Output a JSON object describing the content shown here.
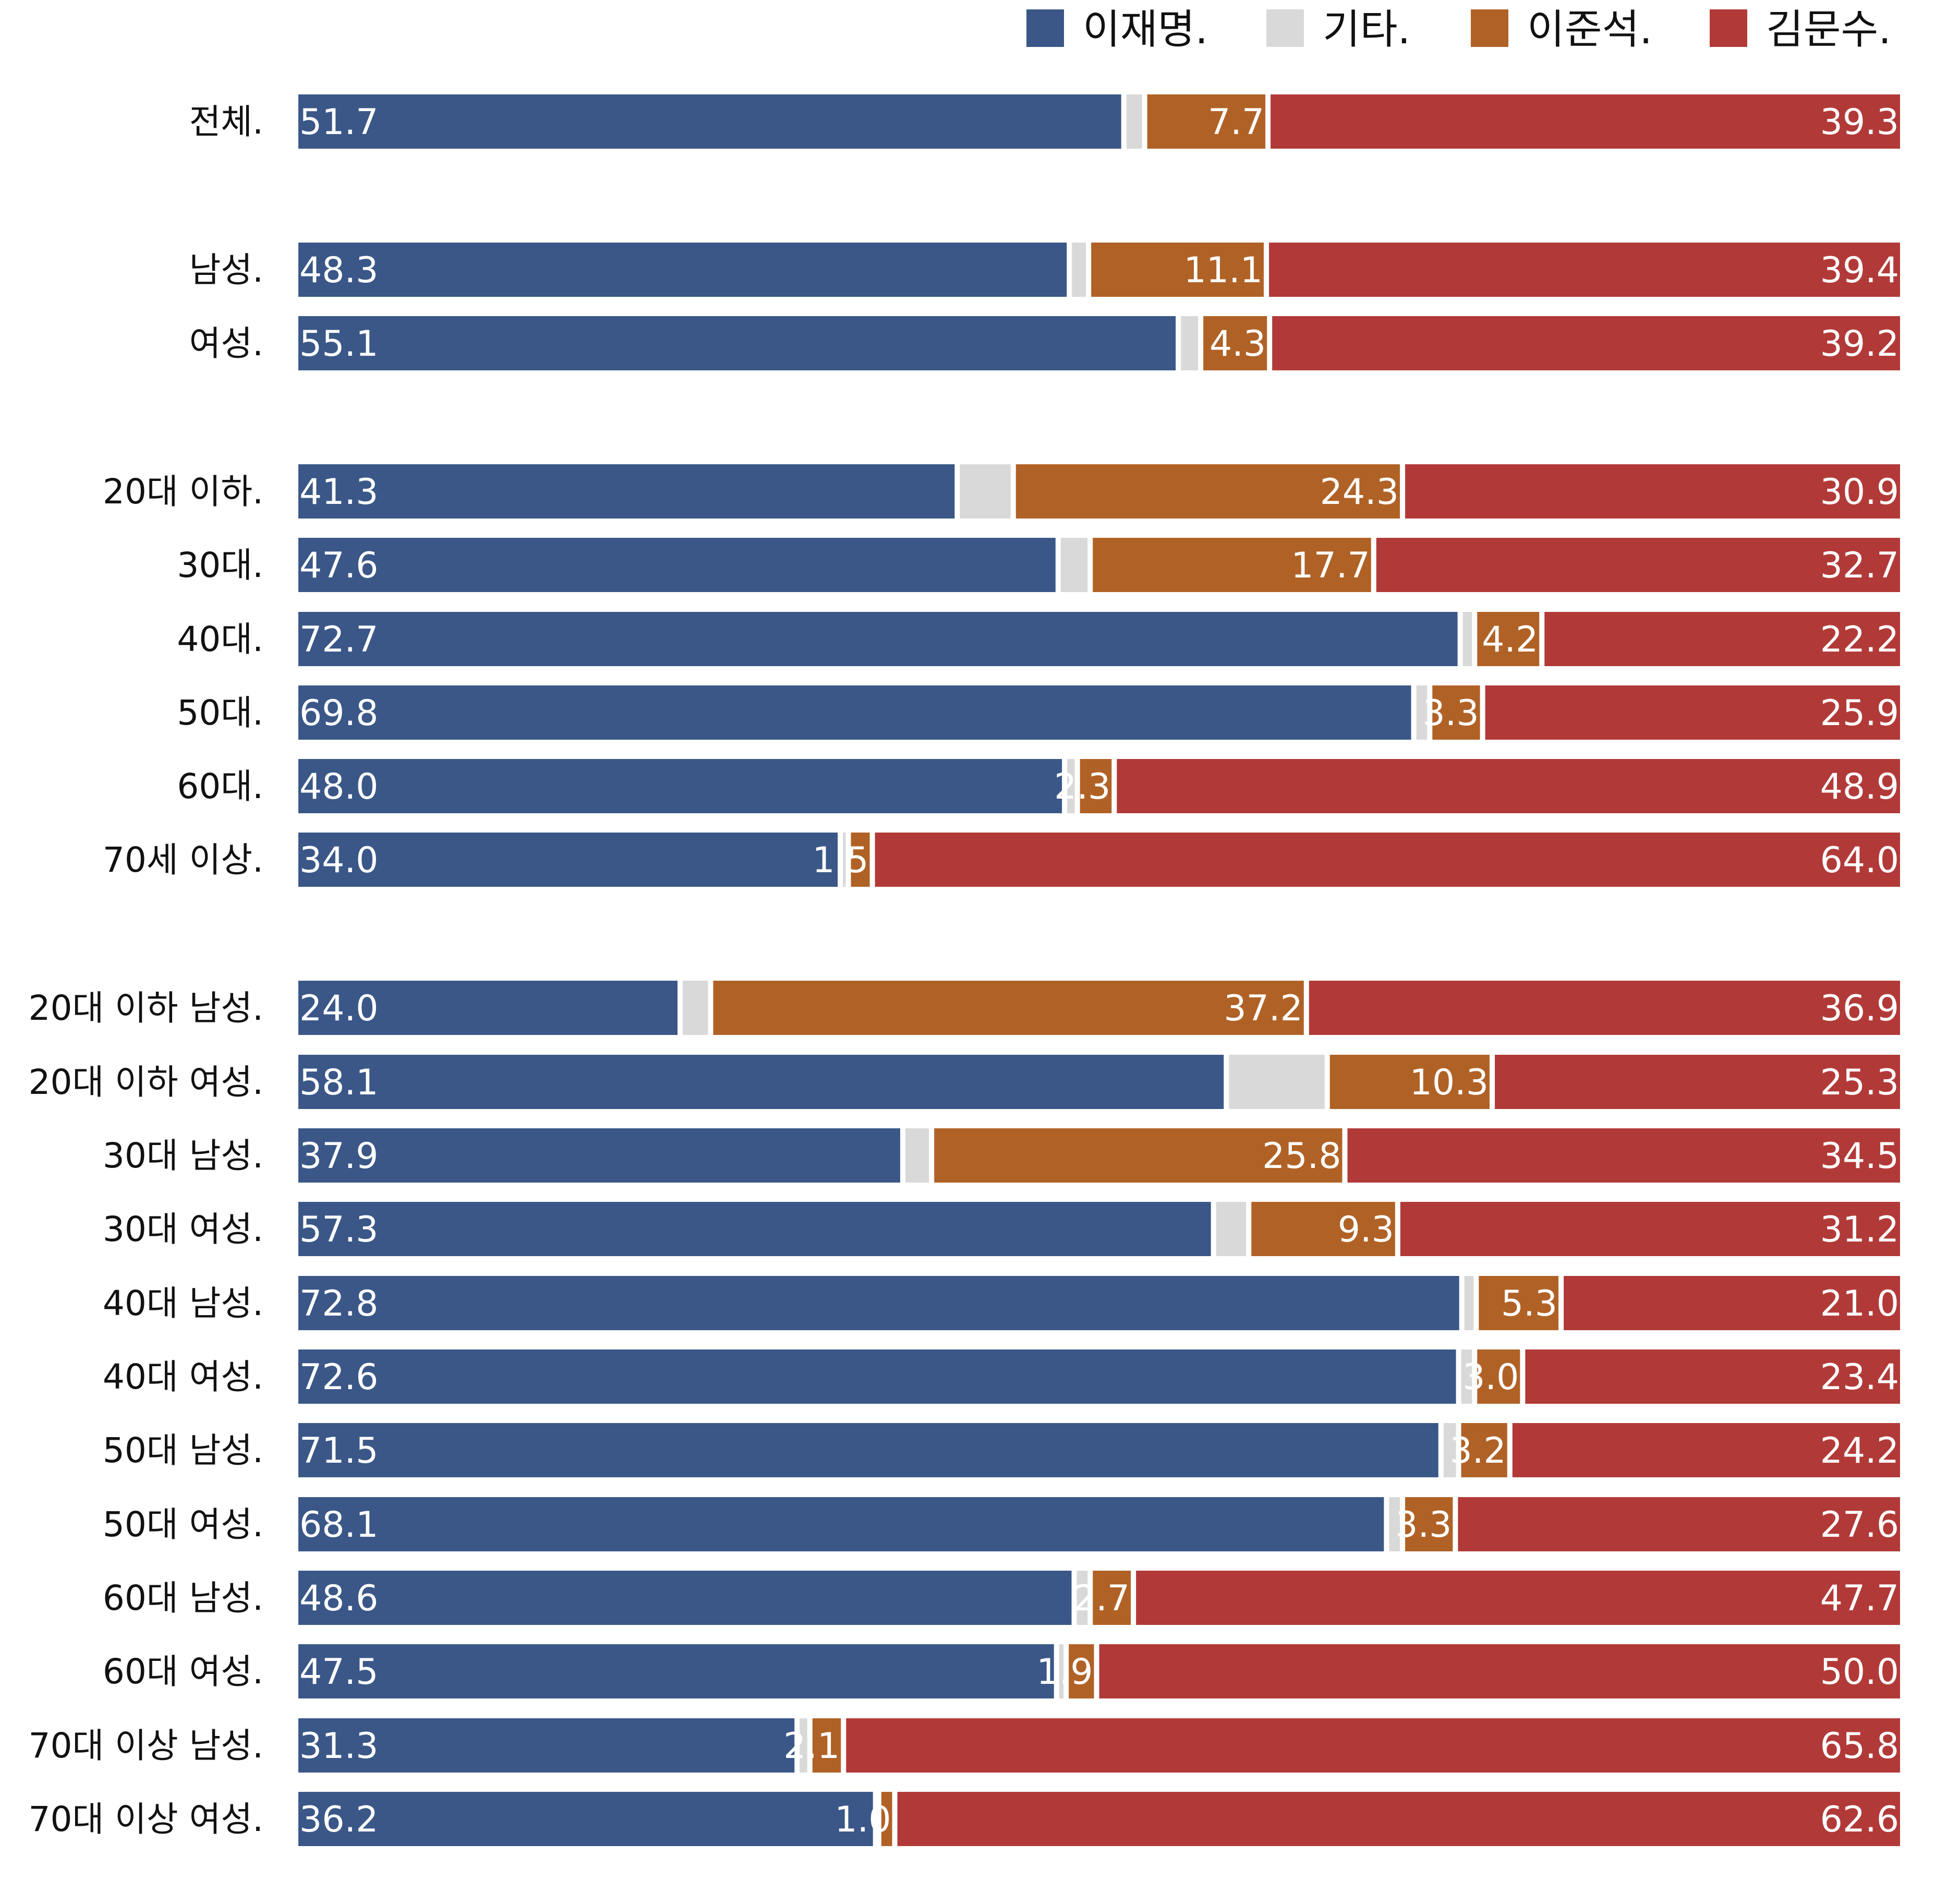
{
  "chart_data": {
    "type": "bar",
    "orientation": "horizontal",
    "stacked": true,
    "normalized_to": 100,
    "grid": false,
    "legend_position": "top-right",
    "series": [
      {
        "name": "이재명.",
        "color": "#3a5788",
        "values": [
          51.7,
          48.3,
          55.1,
          41.3,
          47.6,
          72.7,
          69.8,
          48.0,
          34.0,
          24.0,
          58.1,
          37.9,
          57.3,
          72.8,
          72.6,
          71.5,
          68.1,
          48.6,
          47.5,
          31.3,
          36.2
        ],
        "labels": [
          "51.7",
          "48.3",
          "55.1",
          "41.3",
          "47.6",
          "72.7",
          "69.8",
          "48.0",
          "34.0",
          "24.0",
          "58.1",
          "37.9",
          "57.3",
          "72.8",
          "72.6",
          "71.5",
          "68.1",
          "48.6",
          "47.5",
          "31.3",
          "36.2"
        ]
      },
      {
        "name": "기타.",
        "color": "#d9d9d9",
        "values": [
          1.3,
          1.2,
          1.4,
          3.5,
          2.0,
          0.9,
          1.0,
          0.8,
          0.5,
          1.9,
          6.3,
          1.8,
          2.2,
          0.9,
          1.0,
          1.1,
          1.0,
          1.0,
          0.6,
          0.8,
          0.2
        ],
        "labels": [
          "",
          "",
          "",
          "",
          "",
          "",
          "",
          "",
          "",
          "",
          "",
          "",
          "",
          "",
          "",
          "",
          "",
          "",
          "",
          "",
          ""
        ]
      },
      {
        "name": "이준석.",
        "color": "#b06226",
        "values": [
          7.7,
          11.1,
          4.3,
          24.3,
          17.7,
          4.2,
          3.3,
          2.3,
          1.5,
          37.2,
          10.3,
          25.8,
          9.3,
          5.3,
          3.0,
          3.2,
          3.3,
          2.7,
          1.9,
          2.1,
          1.0
        ],
        "labels": [
          "7.7",
          "11.1",
          "4.3",
          "24.3",
          "17.7",
          "4.2",
          "3.3",
          "2.3",
          "1.5",
          "37.2",
          "10.3",
          "25.8",
          "9.3",
          "5.3",
          "3.0",
          "3.2",
          "3.3",
          "2.7",
          "1.9",
          "2.1",
          "1.0"
        ]
      },
      {
        "name": "김문수.",
        "color": "#b13a38",
        "values": [
          39.3,
          39.4,
          39.2,
          30.9,
          32.7,
          22.2,
          25.9,
          48.9,
          64.0,
          36.9,
          25.3,
          34.5,
          31.2,
          21.0,
          23.4,
          24.2,
          27.6,
          47.7,
          50.0,
          65.8,
          62.6
        ],
        "labels": [
          "39.3",
          "39.4",
          "39.2",
          "30.9",
          "32.7",
          "22.2",
          "25.9",
          "48.9",
          "64.0",
          "36.9",
          "25.3",
          "34.5",
          "31.2",
          "21.0",
          "23.4",
          "24.2",
          "27.6",
          "47.7",
          "50.0",
          "65.8",
          "62.6"
        ]
      }
    ],
    "categories": [
      "전체.",
      "남성.",
      "여성.",
      "20대 이하.",
      "30대.",
      "40대.",
      "50대.",
      "60대.",
      "70세 이상.",
      "20대 이하 남성.",
      "20대 이하 여성.",
      "30대 남성.",
      "30대 여성.",
      "40대 남성.",
      "40대 여성.",
      "50대 남성.",
      "50대 여성.",
      "60대 남성.",
      "60대 여성.",
      "70대 이상 남성.",
      "70대 이상 여성."
    ]
  }
}
